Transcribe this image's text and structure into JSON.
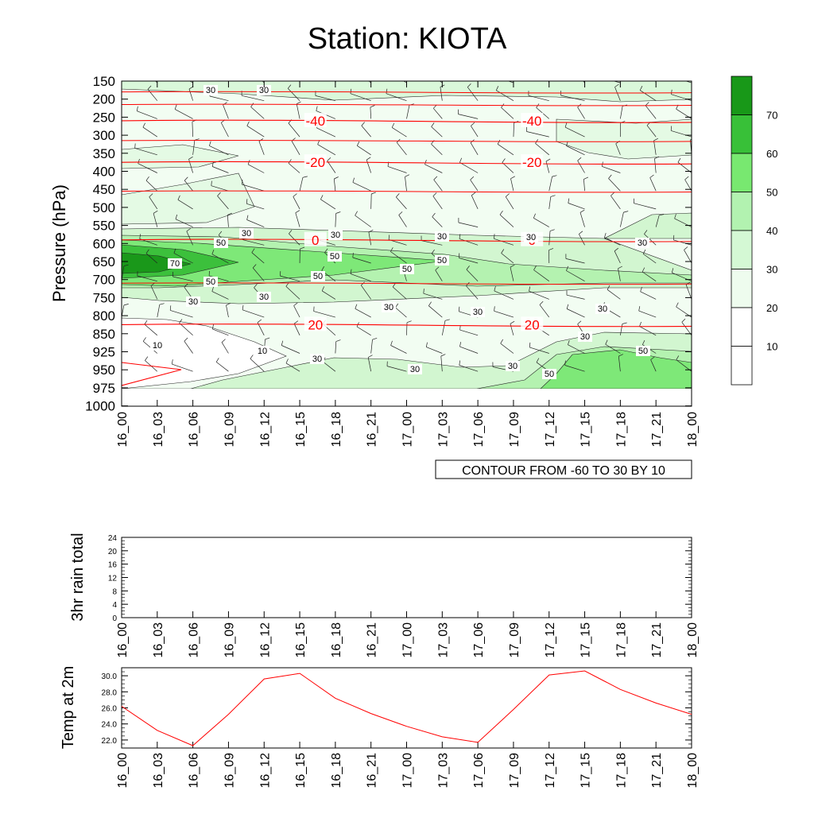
{
  "title": "Station: KIOTA",
  "time_labels": [
    "16_00",
    "16_03",
    "16_06",
    "16_09",
    "16_12",
    "16_15",
    "16_18",
    "16_21",
    "17_00",
    "17_03",
    "17_06",
    "17_09",
    "17_12",
    "17_15",
    "17_18",
    "17_21",
    "18_00"
  ],
  "chart_data": [
    {
      "type": "heatmap",
      "title": "Station: KIOTA",
      "ylabel": "Pressure (hPa)",
      "xlabel": "",
      "y_axis_reversed": true,
      "y_ticks": [
        150,
        200,
        250,
        300,
        350,
        400,
        450,
        500,
        550,
        600,
        650,
        700,
        750,
        800,
        850,
        925,
        950,
        975,
        1000
      ],
      "y_tick_labels": [
        "150",
        "200",
        "250",
        "300",
        "350",
        "400",
        "450",
        "500",
        "550",
        "600",
        "650",
        "700",
        "750",
        "800",
        "850",
        "925",
        "950",
        "975",
        "1000"
      ],
      "x_tick_labels": [
        "16_00",
        "16_03",
        "16_06",
        "16_09",
        "16_12",
        "16_15",
        "16_18",
        "16_21",
        "17_00",
        "17_03",
        "17_06",
        "17_09",
        "17_12",
        "17_15",
        "17_18",
        "17_21",
        "18_00"
      ],
      "filled_field": "relative wind speed (shaded)",
      "colorbar": {
        "levels": [
          10,
          20,
          30,
          40,
          50,
          60,
          70
        ],
        "labels": [
          "10",
          "20",
          "30",
          "40",
          "50",
          "60",
          "70"
        ],
        "colors": [
          "#ffffff",
          "#ffffff",
          "#eefcee",
          "#d4f8d4",
          "#b2f2b0",
          "#78e870",
          "#38c038",
          "#189818"
        ]
      },
      "temperature_contours": [
        {
          "value": -40,
          "label": "-40",
          "pressure": 260
        },
        {
          "value": -20,
          "label": "-20",
          "pressure": 375
        },
        {
          "value": 0,
          "label": "0",
          "pressure": 590
        },
        {
          "value": 20,
          "label": "20",
          "pressure": 825
        }
      ],
      "contour_note": "CONTOUR FROM -60 TO 30 BY 10",
      "contour_color": "#ff0000",
      "wind_barbs": true,
      "grid": false,
      "legend": "right"
    },
    {
      "type": "line",
      "ylabel": "3hr rain total",
      "y_ticks": [
        0,
        4,
        8,
        12,
        16,
        20,
        24
      ],
      "y_tick_labels": [
        "0",
        "4",
        "8",
        "12",
        "16",
        "20",
        "24"
      ],
      "ylim": [
        0,
        24
      ],
      "x": [
        "16_00",
        "16_03",
        "16_06",
        "16_09",
        "16_12",
        "16_15",
        "16_18",
        "16_21",
        "17_00",
        "17_03",
        "17_06",
        "17_09",
        "17_12",
        "17_15",
        "17_18",
        "17_21",
        "18_00"
      ],
      "values": [
        0,
        0,
        0,
        0,
        0,
        0,
        0,
        0,
        0,
        0,
        0,
        0,
        0,
        0,
        0,
        0,
        0
      ]
    },
    {
      "type": "line",
      "ylabel": "Temp at 2m",
      "y_ticks": [
        22,
        24,
        26,
        28,
        30
      ],
      "y_tick_labels": [
        "22.0",
        "24.0",
        "26.0",
        "28.0",
        "30.0"
      ],
      "ylim": [
        21.0,
        31.0
      ],
      "x": [
        "16_00",
        "16_03",
        "16_06",
        "16_09",
        "16_12",
        "16_15",
        "16_18",
        "16_21",
        "17_00",
        "17_03",
        "17_06",
        "17_09",
        "17_12",
        "17_15",
        "17_18",
        "17_21",
        "18_00"
      ],
      "values": [
        26.2,
        23.2,
        21.3,
        25.2,
        29.6,
        30.3,
        27.2,
        25.3,
        23.7,
        22.4,
        21.7,
        25.8,
        30.1,
        30.6,
        28.3,
        26.6,
        25.2
      ],
      "line_color": "#ff0000"
    }
  ]
}
